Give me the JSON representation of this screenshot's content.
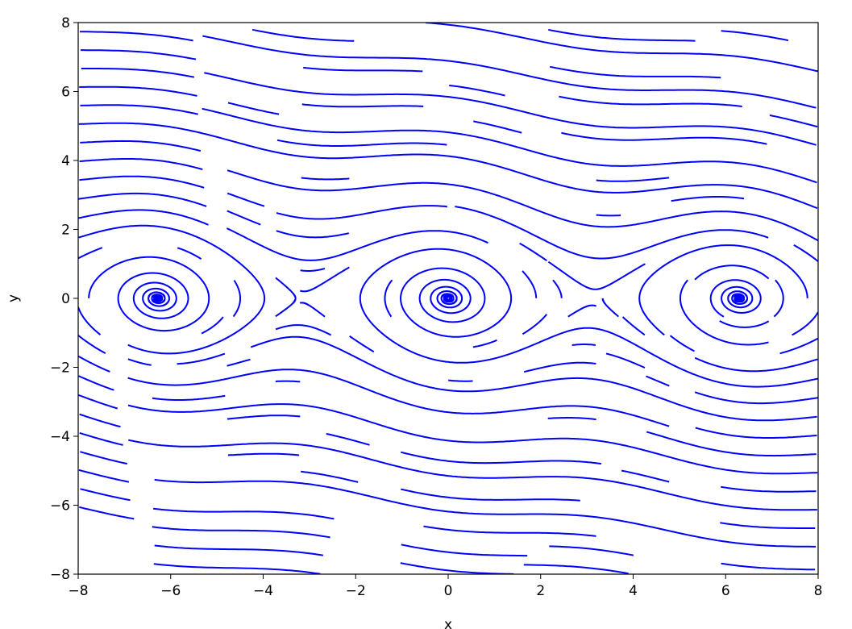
{
  "chart_data": {
    "type": "streamline",
    "title": "",
    "xlabel": "x",
    "ylabel": "y",
    "xlim": [
      -8,
      8
    ],
    "ylim": [
      -8,
      8
    ],
    "xticks": [
      "−8",
      "−6",
      "−4",
      "−2",
      "0",
      "2",
      "4",
      "6",
      "8"
    ],
    "yticks": [
      "−8",
      "−6",
      "−4",
      "−2",
      "0",
      "2",
      "4",
      "6",
      "8"
    ],
    "xtick_values": [
      -8,
      -6,
      -4,
      -2,
      0,
      2,
      4,
      6,
      8
    ],
    "ytick_values": [
      -8,
      -6,
      -4,
      -2,
      0,
      2,
      4,
      6,
      8
    ],
    "grid": false,
    "line_color": "#0000ff",
    "vector_field": {
      "dx": "y",
      "dy": "-sin(x) - 0.15*y",
      "damping": 0.15
    },
    "fixed_points": {
      "spirals_x": [
        -6.283,
        0,
        6.283
      ],
      "saddles_x": [
        -3.142,
        3.142
      ]
    }
  }
}
